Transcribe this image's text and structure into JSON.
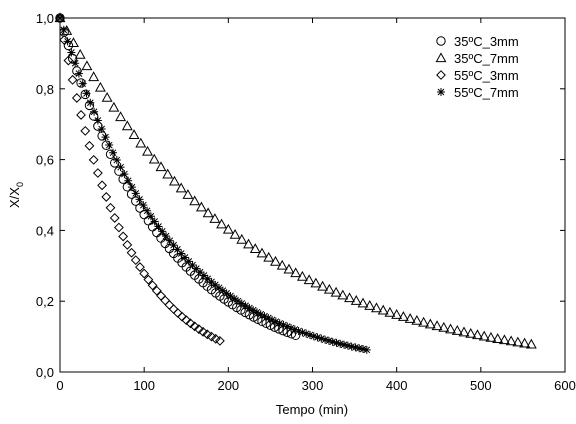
{
  "chart_data": {
    "type": "scatter",
    "xlabel": "Tempo (min)",
    "ylabel_main": "X/X",
    "ylabel_sub": "0",
    "xlim": [
      0,
      600
    ],
    "ylim": [
      0,
      1.0
    ],
    "xticks": [
      "0",
      "100",
      "200",
      "300",
      "400",
      "500",
      "600"
    ],
    "yticks": [
      "0,0",
      "0,2",
      "0,4",
      "0,6",
      "0,8",
      "1,0"
    ],
    "grid": false,
    "legend_position": "top-right",
    "series": [
      {
        "name": "35ºC_3mm",
        "marker": "circle",
        "k": 0.0081,
        "x_start": 0,
        "x_end": 282,
        "step": 5
      },
      {
        "name": "35ºC_7mm",
        "marker": "triangle",
        "k": 0.00455,
        "x_start": 0,
        "x_end": 560,
        "step": 8
      },
      {
        "name": "55ºC_3mm",
        "marker": "diamond",
        "k": 0.0128,
        "x_start": 0,
        "x_end": 194,
        "step": 5
      },
      {
        "name": "55ºC_7mm",
        "marker": "asterisk",
        "k": 0.0076,
        "x_start": 0,
        "x_end": 365,
        "step": 4.5
      }
    ]
  }
}
